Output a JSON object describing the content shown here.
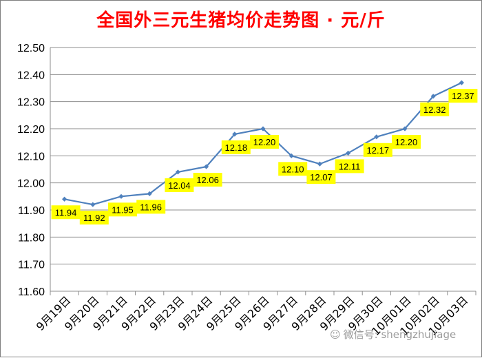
{
  "chart_data": {
    "type": "line",
    "title": "全国外三元生猪均价走势图 · 元/斤",
    "categories": [
      "9月19日",
      "9月20日",
      "9月21日",
      "9月22日",
      "9月23日",
      "9月24日",
      "9月25日",
      "9月26日",
      "9月27日",
      "9月28日",
      "9月29日",
      "9月30日",
      "10月01日",
      "10月02日",
      "10月03日"
    ],
    "values": [
      11.94,
      11.92,
      11.95,
      11.96,
      12.04,
      12.06,
      12.18,
      12.2,
      12.1,
      12.07,
      12.11,
      12.17,
      12.2,
      12.32,
      12.37
    ],
    "data_labels": [
      "11.94",
      "11.92",
      "11.95",
      "11.96",
      "12.04",
      "12.06",
      "12.18",
      "12.20",
      "12.10",
      "12.07",
      "12.11",
      "12.17",
      "12.20",
      "12.32",
      "12.37"
    ],
    "yticks": [
      "11.60",
      "11.70",
      "11.80",
      "11.90",
      "12.00",
      "12.10",
      "12.20",
      "12.30",
      "12.40",
      "12.50"
    ],
    "ylim": [
      11.6,
      12.5
    ],
    "grid": true,
    "legend": "none",
    "colors": {
      "line": "#4f81bd",
      "label_bg": "#ffff00",
      "title": "#ff0000"
    }
  },
  "watermark": {
    "icon": "wechat-icon",
    "text": "微信号: shengzhujiage"
  }
}
